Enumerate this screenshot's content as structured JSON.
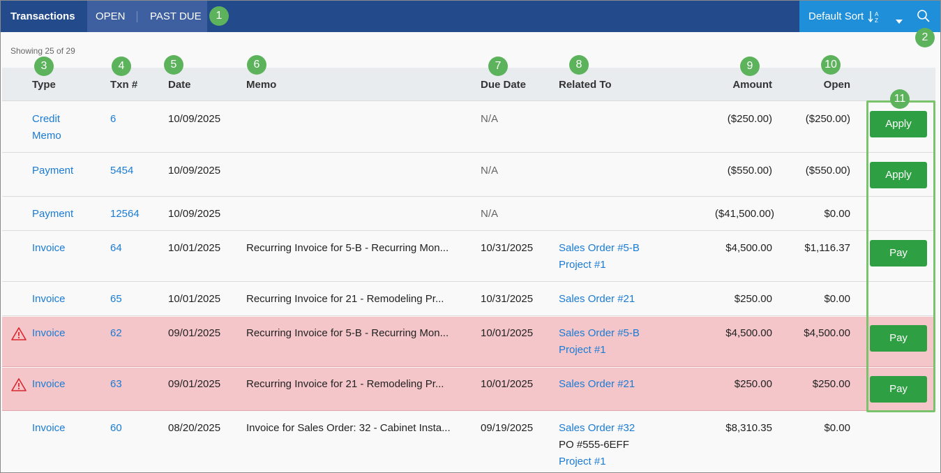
{
  "topbar": {
    "title": "Transactions",
    "tabs": [
      "OPEN",
      "PAST DUE"
    ],
    "sort_label": "Default Sort",
    "sort_icon": "sort-alpha-down-icon",
    "search_icon": "search-icon"
  },
  "showing": "Showing 25 of 29",
  "columns": [
    "Type",
    "Txn #",
    "Date",
    "Memo",
    "Due Date",
    "Related To",
    "Amount",
    "Open"
  ],
  "callouts": [
    "1",
    "2",
    "3",
    "4",
    "5",
    "6",
    "7",
    "8",
    "9",
    "10",
    "11"
  ],
  "rows": [
    {
      "type": [
        "Credit",
        "Memo"
      ],
      "txn": "6",
      "date": "10/09/2025",
      "memo": "",
      "due": "N/A",
      "related": [],
      "amount": "($250.00)",
      "open": "($250.00)",
      "action": "Apply",
      "past_due": false
    },
    {
      "type": [
        "Payment"
      ],
      "txn": "5454",
      "date": "10/09/2025",
      "memo": "",
      "due": "N/A",
      "related": [],
      "amount": "($550.00)",
      "open": "($550.00)",
      "action": "Apply",
      "past_due": false
    },
    {
      "type": [
        "Payment"
      ],
      "txn": "12564",
      "date": "10/09/2025",
      "memo": "",
      "due": "N/A",
      "related": [],
      "amount": "($41,500.00)",
      "open": "$0.00",
      "action": "",
      "past_due": false
    },
    {
      "type": [
        "Invoice"
      ],
      "txn": "64",
      "date": "10/01/2025",
      "memo": "Recurring Invoice for 5-B - Recurring Mon...",
      "due": "10/31/2025",
      "related": [
        "Sales Order #5-B",
        "Project #1"
      ],
      "amount": "$4,500.00",
      "open": "$1,116.37",
      "action": "Pay",
      "past_due": false
    },
    {
      "type": [
        "Invoice"
      ],
      "txn": "65",
      "date": "10/01/2025",
      "memo": "Recurring Invoice for 21 - Remodeling Pr...",
      "due": "10/31/2025",
      "related": [
        "Sales Order #21"
      ],
      "amount": "$250.00",
      "open": "$0.00",
      "action": "",
      "past_due": false
    },
    {
      "type": [
        "Invoice"
      ],
      "txn": "62",
      "date": "09/01/2025",
      "memo": "Recurring Invoice for 5-B - Recurring Mon...",
      "due": "10/01/2025",
      "related": [
        "Sales Order #5-B",
        "Project #1"
      ],
      "amount": "$4,500.00",
      "open": "$4,500.00",
      "action": "Pay",
      "past_due": true
    },
    {
      "type": [
        "Invoice"
      ],
      "txn": "63",
      "date": "09/01/2025",
      "memo": "Recurring Invoice for 21 - Remodeling Pr...",
      "due": "10/01/2025",
      "related": [
        "Sales Order #21"
      ],
      "amount": "$250.00",
      "open": "$250.00",
      "action": "Pay",
      "past_due": true
    },
    {
      "type": [
        "Invoice"
      ],
      "txn": "60",
      "date": "08/20/2025",
      "memo": "Invoice for Sales Order: 32 - Cabinet Insta...",
      "due": "09/19/2025",
      "related": [
        "Sales Order #32",
        "PO #555-6EFF",
        "Project #1"
      ],
      "amount": "$8,310.35",
      "open": "$0.00",
      "action": "",
      "past_due": false
    }
  ],
  "colors": {
    "navy": "#234b8c",
    "blue": "#1e8fd8",
    "link": "#1a7bd4",
    "green": "#2ea043",
    "pastdue": "#f5c6c9",
    "callout": "#5cb35c"
  }
}
